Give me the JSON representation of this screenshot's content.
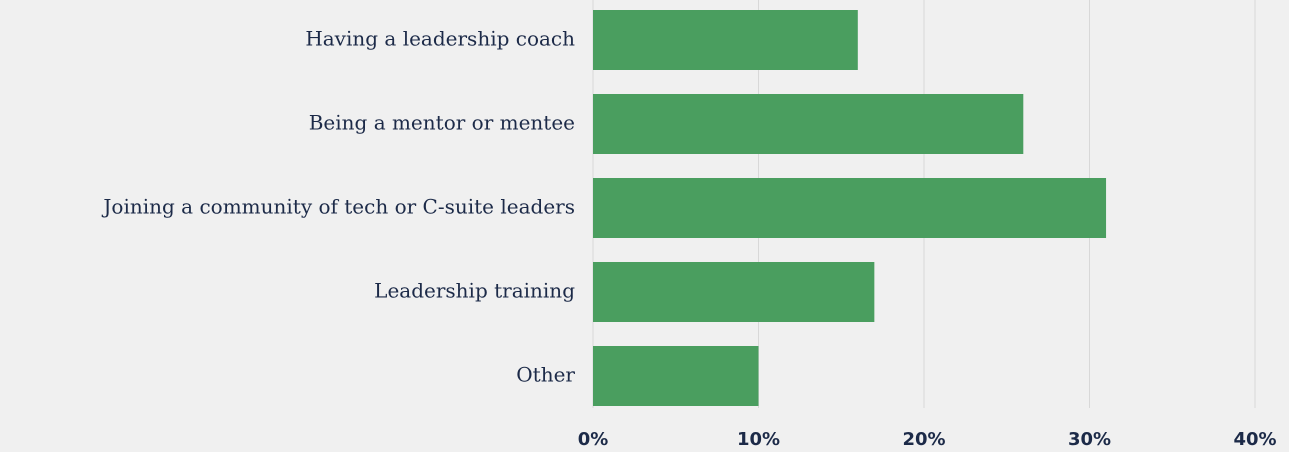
{
  "chart_data": {
    "type": "bar",
    "orientation": "horizontal",
    "categories": [
      "Having a leadership coach",
      "Being a mentor or mentee",
      "Joining a community of tech or C-suite leaders",
      "Leadership training",
      "Other"
    ],
    "values": [
      16,
      26,
      31,
      17,
      10
    ],
    "color": "#4a9e5f",
    "xlim": [
      0,
      40
    ],
    "xticks": [
      {
        "value": 0,
        "label": "0%"
      },
      {
        "value": 10,
        "label": "10%"
      },
      {
        "value": 20,
        "label": "20%"
      },
      {
        "value": 30,
        "label": "30%"
      },
      {
        "value": 40,
        "label": "40%"
      }
    ],
    "grid": true
  }
}
